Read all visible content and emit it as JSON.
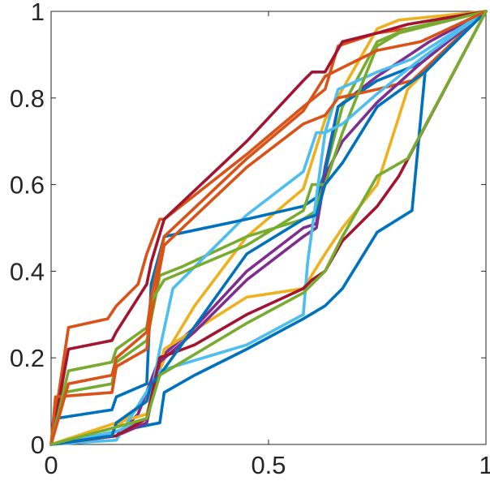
{
  "chart_data": {
    "type": "line",
    "title": "",
    "xlabel": "",
    "ylabel": "",
    "xlim": [
      0,
      1
    ],
    "ylim": [
      0,
      1
    ],
    "xticks": [
      0,
      0.5,
      1
    ],
    "xtick_labels": [
      "0",
      "0.5",
      "1"
    ],
    "yticks": [
      0,
      0.2,
      0.4,
      0.6,
      0.8,
      1
    ],
    "ytick_labels": [
      "0",
      "0.2",
      "0.4",
      "0.6",
      "0.8",
      "1"
    ],
    "grid": false,
    "legend": "none",
    "series": [
      {
        "color": "#0072BD",
        "x": [
          0,
          0.15,
          0.25,
          0.26,
          0.33,
          0.45,
          0.58,
          0.63,
          0.67,
          0.75,
          0.83,
          0.86,
          1
        ],
        "y": [
          0,
          0.03,
          0.05,
          0.12,
          0.16,
          0.22,
          0.29,
          0.32,
          0.36,
          0.49,
          0.54,
          0.86,
          1
        ]
      },
      {
        "color": "#D95319",
        "x": [
          0,
          0.04,
          0.13,
          0.15,
          0.2,
          0.22,
          0.25,
          0.26,
          0.45,
          0.58,
          0.63,
          0.66,
          0.75,
          0.82,
          1
        ],
        "y": [
          0,
          0.27,
          0.29,
          0.32,
          0.37,
          0.44,
          0.52,
          0.52,
          0.67,
          0.78,
          0.82,
          0.92,
          0.95,
          0.96,
          1
        ]
      },
      {
        "color": "#EDB120",
        "x": [
          0,
          0.15,
          0.22,
          0.27,
          0.33,
          0.45,
          0.58,
          0.63,
          0.67,
          0.75,
          0.8,
          1
        ],
        "y": [
          0,
          0.04,
          0.1,
          0.22,
          0.32,
          0.48,
          0.59,
          0.75,
          0.82,
          0.96,
          0.98,
          1
        ]
      },
      {
        "color": "#7E2F8E",
        "x": [
          0,
          0.15,
          0.2,
          0.25,
          0.33,
          0.45,
          0.58,
          0.61,
          0.63,
          0.66,
          0.75,
          0.87,
          1
        ],
        "y": [
          0,
          0.02,
          0.07,
          0.2,
          0.27,
          0.4,
          0.5,
          0.51,
          0.64,
          0.78,
          0.85,
          0.93,
          1
        ]
      },
      {
        "color": "#77AC30",
        "x": [
          0,
          0.03,
          0.14,
          0.15,
          0.22,
          0.25,
          0.3,
          0.45,
          0.58,
          0.61,
          0.63,
          0.67,
          0.75,
          0.82,
          1
        ],
        "y": [
          0,
          0.12,
          0.14,
          0.19,
          0.24,
          0.39,
          0.41,
          0.48,
          0.52,
          0.54,
          0.63,
          0.78,
          0.93,
          0.96,
          1
        ]
      },
      {
        "color": "#4DBEEE",
        "x": [
          0,
          0.15,
          0.22,
          0.25,
          0.28,
          0.45,
          0.58,
          0.61,
          0.63,
          0.66,
          0.75,
          0.83,
          1
        ],
        "y": [
          0,
          0.03,
          0.06,
          0.22,
          0.36,
          0.53,
          0.63,
          0.72,
          0.72,
          0.82,
          0.86,
          0.89,
          1
        ]
      },
      {
        "color": "#A2142F",
        "x": [
          0,
          0.04,
          0.14,
          0.15,
          0.22,
          0.23,
          0.26,
          0.45,
          0.58,
          0.6,
          0.63,
          0.67,
          0.75,
          0.82,
          1
        ],
        "y": [
          0,
          0.22,
          0.24,
          0.26,
          0.37,
          0.42,
          0.52,
          0.7,
          0.84,
          0.86,
          0.86,
          0.93,
          0.95,
          0.97,
          1
        ]
      },
      {
        "color": "#0072BD",
        "x": [
          0,
          0.01,
          0.14,
          0.15,
          0.22,
          0.23,
          0.26,
          0.45,
          0.58,
          0.61,
          0.63,
          0.66,
          0.75,
          0.85,
          1
        ],
        "y": [
          0,
          0.06,
          0.08,
          0.11,
          0.14,
          0.37,
          0.48,
          0.52,
          0.55,
          0.57,
          0.63,
          0.78,
          0.84,
          0.88,
          1
        ]
      },
      {
        "color": "#D95319",
        "x": [
          0,
          0.01,
          0.14,
          0.15,
          0.22,
          0.23,
          0.26,
          0.45,
          0.58,
          0.63,
          0.66,
          0.75,
          0.83,
          1
        ],
        "y": [
          0,
          0.11,
          0.12,
          0.18,
          0.22,
          0.3,
          0.46,
          0.64,
          0.74,
          0.76,
          0.8,
          0.82,
          0.84,
          1
        ]
      },
      {
        "color": "#EDB120",
        "x": [
          0,
          0.15,
          0.22,
          0.25,
          0.26,
          0.45,
          0.58,
          0.63,
          0.67,
          0.75,
          0.82,
          1
        ],
        "y": [
          0,
          0.05,
          0.07,
          0.18,
          0.22,
          0.34,
          0.36,
          0.44,
          0.5,
          0.6,
          0.82,
          1
        ]
      },
      {
        "color": "#7E2F8E",
        "x": [
          0,
          0.15,
          0.22,
          0.25,
          0.33,
          0.45,
          0.58,
          0.61,
          0.63,
          0.67,
          0.75,
          0.85,
          1
        ],
        "y": [
          0,
          0.02,
          0.05,
          0.19,
          0.26,
          0.38,
          0.48,
          0.5,
          0.62,
          0.7,
          0.79,
          0.88,
          1
        ]
      },
      {
        "color": "#77AC30",
        "x": [
          0,
          0.04,
          0.14,
          0.15,
          0.22,
          0.23,
          0.26,
          0.45,
          0.58,
          0.6,
          0.63,
          0.67,
          0.75,
          0.8,
          1
        ],
        "y": [
          0,
          0.17,
          0.19,
          0.22,
          0.27,
          0.33,
          0.38,
          0.46,
          0.54,
          0.6,
          0.6,
          0.72,
          0.92,
          0.95,
          1
        ]
      },
      {
        "color": "#4DBEEE",
        "x": [
          0,
          0.15,
          0.25,
          0.45,
          0.58,
          0.59,
          0.63,
          0.67,
          0.75,
          0.85,
          1
        ],
        "y": [
          0,
          0.01,
          0.17,
          0.23,
          0.3,
          0.42,
          0.72,
          0.74,
          0.81,
          0.89,
          1
        ]
      },
      {
        "color": "#A2142F",
        "x": [
          0,
          0.15,
          0.22,
          0.25,
          0.33,
          0.45,
          0.58,
          0.6,
          0.63,
          0.67,
          0.75,
          0.8,
          1
        ],
        "y": [
          0,
          0.02,
          0.06,
          0.2,
          0.23,
          0.3,
          0.36,
          0.38,
          0.4,
          0.47,
          0.55,
          0.62,
          1
        ]
      },
      {
        "color": "#0072BD",
        "x": [
          0,
          0.14,
          0.15,
          0.22,
          0.23,
          0.25,
          0.45,
          0.58,
          0.61,
          0.63,
          0.67,
          0.75,
          0.86,
          1
        ],
        "y": [
          0,
          0.02,
          0.05,
          0.1,
          0.14,
          0.16,
          0.44,
          0.52,
          0.53,
          0.6,
          0.65,
          0.78,
          0.86,
          1
        ]
      },
      {
        "color": "#D95319",
        "x": [
          0,
          0.04,
          0.14,
          0.15,
          0.22,
          0.23,
          0.26,
          0.45,
          0.58,
          0.63,
          0.67,
          0.75,
          0.85,
          1
        ],
        "y": [
          0,
          0.14,
          0.16,
          0.2,
          0.26,
          0.34,
          0.48,
          0.66,
          0.77,
          0.85,
          0.87,
          0.91,
          0.93,
          1
        ]
      },
      {
        "color": "#77AC30",
        "x": [
          0,
          0.15,
          0.22,
          0.25,
          0.45,
          0.58,
          0.63,
          0.67,
          0.75,
          0.82,
          1
        ],
        "y": [
          0,
          0.04,
          0.06,
          0.16,
          0.28,
          0.35,
          0.4,
          0.48,
          0.62,
          0.66,
          1
        ]
      }
    ]
  }
}
